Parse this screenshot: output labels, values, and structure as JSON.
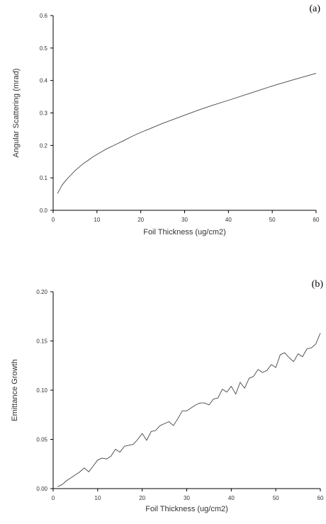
{
  "chart_data": [
    {
      "type": "line",
      "panel_label": "(a)",
      "xlabel": "Foil Thickness (ug/cm2)",
      "ylabel": "Angular Scattering (mrad)",
      "xlim": [
        0,
        60
      ],
      "ylim": [
        0.0,
        0.6
      ],
      "xticks": [
        0,
        10,
        20,
        30,
        40,
        50,
        60
      ],
      "xtick_labels": [
        "0",
        "10",
        "20",
        "30",
        "40",
        "50",
        "60"
      ],
      "yticks": [
        0.0,
        0.1,
        0.2,
        0.3,
        0.4,
        0.5,
        0.6
      ],
      "ytick_labels": [
        "0.0",
        "0.1",
        "0.2",
        "0.3",
        "0.4",
        "0.5",
        "0.6"
      ],
      "grid": false,
      "line_color": "#444444",
      "series": [
        {
          "x": [
            1,
            2,
            3,
            4,
            5,
            6,
            7,
            8,
            9,
            10,
            12,
            14,
            16,
            18,
            20,
            22,
            25,
            28,
            30,
            33,
            36,
            40,
            45,
            50,
            55,
            60
          ],
          "y": [
            0.052,
            0.077,
            0.094,
            0.108,
            0.122,
            0.134,
            0.145,
            0.154,
            0.164,
            0.172,
            0.188,
            0.201,
            0.214,
            0.228,
            0.24,
            0.251,
            0.268,
            0.283,
            0.293,
            0.308,
            0.322,
            0.339,
            0.361,
            0.383,
            0.403,
            0.422
          ]
        }
      ]
    },
    {
      "type": "line",
      "panel_label": "(b)",
      "xlabel": "Foil Thickness (ug/cm2)",
      "ylabel": "Emittance Growth",
      "xlim": [
        0,
        60
      ],
      "ylim": [
        0.0,
        0.2
      ],
      "xticks": [
        0,
        10,
        20,
        30,
        40,
        50,
        60
      ],
      "xtick_labels": [
        "0",
        "10",
        "20",
        "30",
        "40",
        "50",
        "60"
      ],
      "yticks": [
        0.0,
        0.05,
        0.1,
        0.15,
        0.2
      ],
      "ytick_labels": [
        "0.00",
        "0.05",
        "0.10",
        "0.15",
        "0.20"
      ],
      "grid": false,
      "line_color": "#444444",
      "series": [
        {
          "x": [
            1,
            2,
            3,
            4,
            5,
            6,
            7,
            8,
            9,
            10,
            11,
            12,
            13,
            14,
            15,
            16,
            17,
            18,
            19,
            20,
            21,
            22,
            23,
            24,
            25,
            26,
            27,
            28,
            29,
            30,
            31,
            32,
            33,
            34,
            35,
            36,
            37,
            38,
            39,
            40,
            41,
            42,
            43,
            44,
            45,
            46,
            47,
            48,
            49,
            50,
            51,
            52,
            53,
            54,
            55,
            56,
            57,
            58,
            59,
            60
          ],
          "y": [
            0.002,
            0.004,
            0.008,
            0.011,
            0.014,
            0.017,
            0.021,
            0.017,
            0.023,
            0.029,
            0.031,
            0.03,
            0.033,
            0.04,
            0.037,
            0.043,
            0.044,
            0.045,
            0.05,
            0.056,
            0.049,
            0.058,
            0.059,
            0.064,
            0.066,
            0.068,
            0.064,
            0.071,
            0.079,
            0.079,
            0.082,
            0.085,
            0.087,
            0.087,
            0.085,
            0.091,
            0.092,
            0.101,
            0.098,
            0.104,
            0.096,
            0.108,
            0.102,
            0.112,
            0.114,
            0.121,
            0.118,
            0.12,
            0.126,
            0.123,
            0.136,
            0.138,
            0.133,
            0.129,
            0.137,
            0.134,
            0.142,
            0.143,
            0.147,
            0.158
          ]
        }
      ]
    }
  ]
}
